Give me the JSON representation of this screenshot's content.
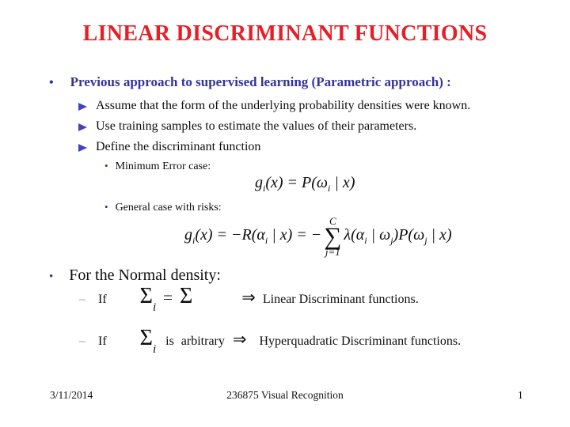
{
  "icons": {
    "dot": "•",
    "dash": "–",
    "implies": "⇒"
  },
  "slide": {
    "title": "LINEAR DISCRIMINANT FUNCTIONS",
    "bullet1": "Previous approach to supervised learning (Parametric approach) :",
    "arrow_items": [
      "Assume that the form of the underlying probability densities were known.",
      "Use training samples to estimate the values of their parameters.",
      "Define the discriminant function"
    ],
    "min_error_label": "Minimum Error case:",
    "general_label": "General case with risks:",
    "normal_density_label": "For the Normal density:",
    "case1": {
      "if_label": "If",
      "sigma": "Σ",
      "sigma_sub": "i",
      "equals": "=",
      "sigma2": "Σ",
      "result": "Linear Discriminant functions."
    },
    "case2": {
      "if_label": "If",
      "sigma": "Σ",
      "sigma_sub": "i",
      "mid": "is arbitrary",
      "result": "Hyperquadratic Discriminant functions."
    },
    "footer": {
      "date": "3/11/2014",
      "course": "236875 Visual Recognition",
      "page": "1"
    }
  },
  "formulas": {
    "min_error": {
      "t1": "g",
      "s1": "i",
      "t2": "(x) = P(",
      "o1": "ω",
      "s2": "i",
      "t3": " | x)"
    },
    "risk": {
      "t1": "g",
      "s1": "i",
      "t2": "(x) = −R(",
      "a1": "α",
      "s2": "i",
      "t3": " | x) = −",
      "sum_top": "C",
      "sigma": "∑",
      "sum_bot": "j=1",
      "t4": "λ(",
      "a2": "α",
      "s3": "i",
      "t5": " | ",
      "o1": "ω",
      "s4": "j",
      "t6": ")P(",
      "o2": "ω",
      "s5": "j",
      "t7": " | x)"
    }
  }
}
